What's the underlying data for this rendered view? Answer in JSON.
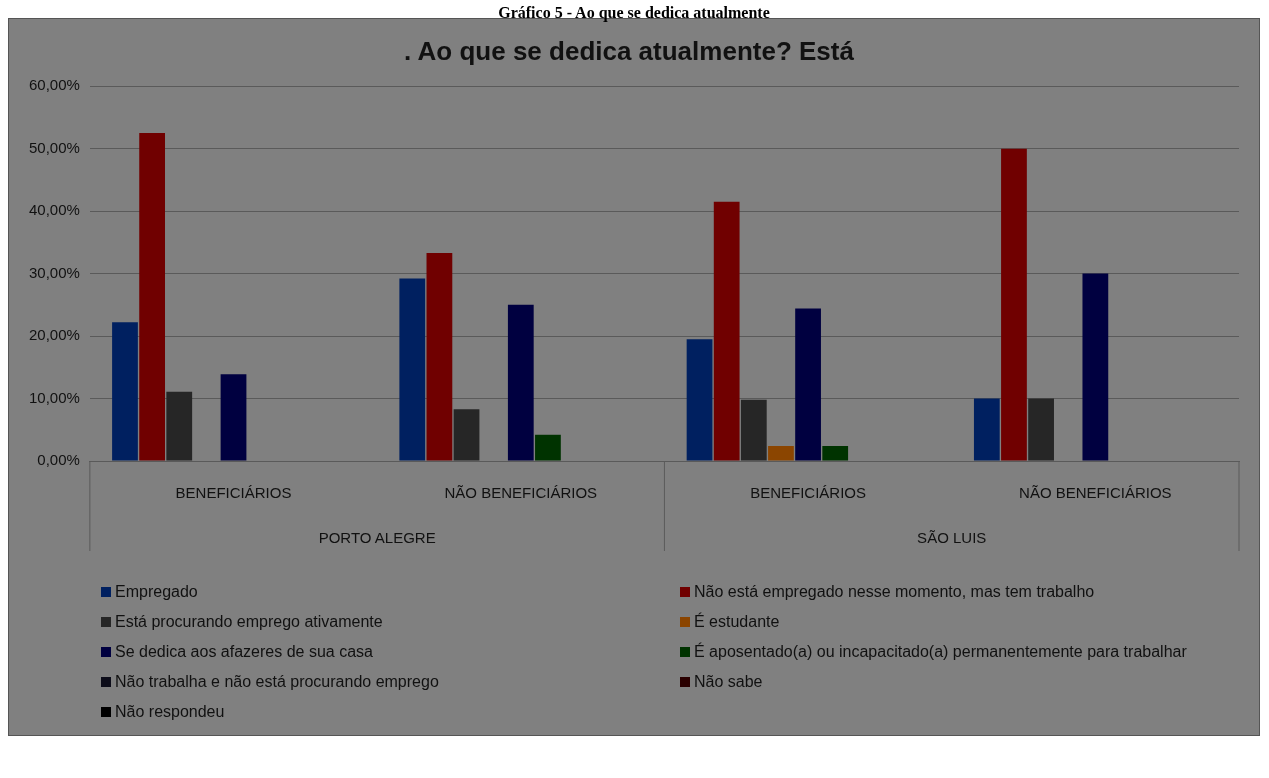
{
  "chart_data": {
    "type": "bar",
    "title": ". Ao que se dedica atualmente? Está",
    "annotations": [
      "Gráfico 5 - Ao que se dedica atualmente",
      "PORTO ALEGRE",
      "SÃO LUIS"
    ],
    "categories": [
      "BENEFICIÁRIOS",
      "NÃO BENEFICIÁRIOS",
      "BENEFICIÁRIOS",
      "NÃO BENEFICIÁRIOS"
    ],
    "series": [
      {
        "name": "Empregado",
        "color": "#002060",
        "values": [
          22.2,
          29.2,
          19.5,
          10
        ]
      },
      {
        "name": "Não está empregado nesse momento, mas tem trabalho",
        "color": "#700000",
        "values": [
          52.5,
          33.3,
          41.5,
          50
        ]
      },
      {
        "name": "Está procurando emprego ativamente",
        "color": "#262626",
        "values": [
          11.1,
          8.3,
          9.8,
          10
        ]
      },
      {
        "name": "É estudante",
        "color": "#8b4500",
        "values": [
          0,
          0,
          2.4,
          0
        ]
      },
      {
        "name": "Se dedica aos afazeres de sua casa",
        "color": "#000040",
        "values": [
          13.9,
          25,
          24.4,
          30
        ]
      },
      {
        "name": "É aposentado(a) ou incapacitado(a) permanentemente para trabalhar",
        "color": "#003300",
        "values": [
          0,
          4.2,
          2.4,
          0
        ]
      },
      {
        "name": "Não trabalha e não está procurando emprego",
        "color": "#0d0d1a",
        "values": [
          0,
          0,
          0,
          0
        ]
      },
      {
        "name": "Não sabe",
        "color": "#2a0000",
        "values": [
          0,
          0,
          0,
          0
        ]
      },
      {
        "name": "Não respondeu",
        "color": "#000000",
        "values": [
          0,
          0,
          0,
          0
        ]
      }
    ],
    "ylim": [
      0,
      60
    ],
    "yticks": [
      {
        "value": 0,
        "label": "0,00%"
      },
      {
        "value": 10,
        "label": "10,00%"
      },
      {
        "value": 20,
        "label": "20,00%"
      },
      {
        "value": 30,
        "label": "30,00%"
      },
      {
        "value": 40,
        "label": "40,00%"
      },
      {
        "value": 50,
        "label": "50,00%"
      },
      {
        "value": 60,
        "label": "60,00%"
      }
    ],
    "grid": "y",
    "legend": "bottom"
  }
}
